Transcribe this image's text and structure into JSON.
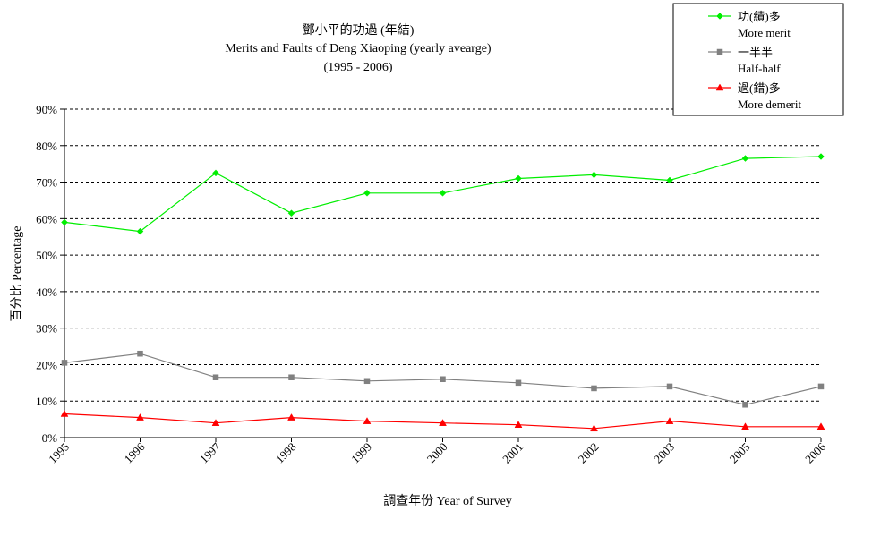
{
  "chart_data": {
    "type": "line",
    "title": [
      "鄧小平的功過 (年結)",
      "Merits and Faults of Deng Xiaoping (yearly avearge)",
      "(1995 - 2006)"
    ],
    "xlabel": "調查年份 Year of Survey",
    "ylabel": "百分比 Percentage",
    "categories": [
      "1995",
      "1996",
      "1997",
      "1998",
      "1999",
      "2000",
      "2001",
      "2002",
      "2003",
      "2005",
      "2006"
    ],
    "y_ticks": [
      "0%",
      "10%",
      "20%",
      "30%",
      "40%",
      "50%",
      "60%",
      "70%",
      "80%",
      "90%"
    ],
    "ylim": [
      0,
      90
    ],
    "grid": "horizontal dashed",
    "legend_position": "top-right",
    "series": [
      {
        "name": "功(績)多",
        "name_en": "More merit",
        "color": "#00ee00",
        "marker": "diamond",
        "values": [
          59,
          56.5,
          72.5,
          61.5,
          67,
          67,
          71,
          72,
          70.5,
          76.5,
          77
        ]
      },
      {
        "name": "一半半",
        "name_en": "Half-half",
        "color": "#808080",
        "marker": "square",
        "values": [
          20.5,
          23,
          16.5,
          16.5,
          15.5,
          16,
          15,
          13.5,
          14,
          9,
          14
        ]
      },
      {
        "name": "過(錯)多",
        "name_en": "More demerit",
        "color": "#ff0000",
        "marker": "triangle",
        "values": [
          6.5,
          5.5,
          4,
          5.5,
          4.5,
          4,
          3.5,
          2.5,
          4.5,
          3,
          3
        ]
      }
    ]
  }
}
